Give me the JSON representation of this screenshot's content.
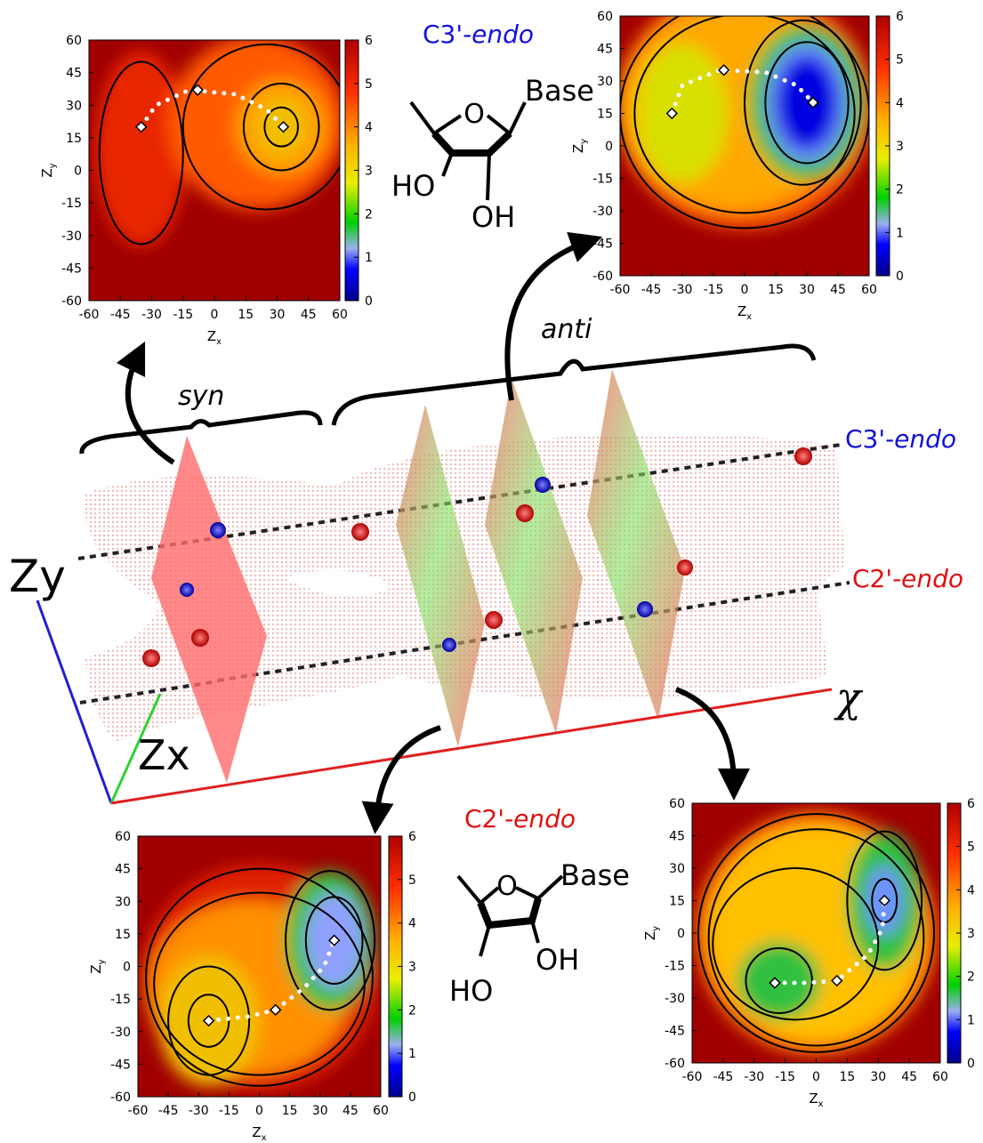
{
  "panels": [
    {
      "xlim": [
        -60,
        60
      ],
      "ylim": [
        -60,
        60
      ],
      "clim": [
        0,
        6
      ],
      "xticks": [
        -60,
        -45,
        -30,
        -15,
        0,
        15,
        30,
        45,
        60
      ],
      "yticks": [
        -60,
        -45,
        -30,
        -15,
        0,
        15,
        30,
        45,
        60
      ],
      "colorbar_ticks": [
        0,
        1,
        2,
        3,
        4,
        5,
        6
      ],
      "xlabel": "Z",
      "xlabel_sub": "x",
      "ylabel": "Z",
      "ylabel_sub": "y"
    },
    {
      "xlim": [
        -60,
        60
      ],
      "ylim": [
        -60,
        60
      ],
      "clim": [
        0,
        6
      ],
      "xticks": [
        -60,
        -45,
        -30,
        -15,
        0,
        15,
        30,
        45,
        60
      ],
      "yticks": [
        -60,
        -45,
        -30,
        -15,
        0,
        15,
        30,
        45,
        60
      ],
      "colorbar_ticks": [
        0,
        1,
        2,
        3,
        4,
        5,
        6
      ],
      "xlabel": "Z",
      "xlabel_sub": "x",
      "ylabel": "Z",
      "ylabel_sub": "y"
    },
    {
      "xlim": [
        -60,
        60
      ],
      "ylim": [
        -60,
        60
      ],
      "clim": [
        0,
        6
      ],
      "xticks": [
        -60,
        -45,
        -30,
        -15,
        0,
        15,
        30,
        45,
        60
      ],
      "yticks": [
        -60,
        -45,
        -30,
        -15,
        0,
        15,
        30,
        45,
        60
      ],
      "colorbar_ticks": [
        0,
        1,
        2,
        3,
        4,
        5,
        6
      ],
      "xlabel": "Z",
      "xlabel_sub": "x",
      "ylabel": "Z",
      "ylabel_sub": "y"
    },
    {
      "xlim": [
        -60,
        60
      ],
      "ylim": [
        -60,
        60
      ],
      "clim": [
        0,
        6
      ],
      "xticks": [
        -60,
        -45,
        -30,
        -15,
        0,
        15,
        30,
        45,
        60
      ],
      "yticks": [
        -60,
        -45,
        -30,
        -15,
        0,
        15,
        30,
        45,
        60
      ],
      "colorbar_ticks": [
        0,
        1,
        2,
        3,
        4,
        5,
        6
      ],
      "xlabel": "Z",
      "xlabel_sub": "x",
      "ylabel": "Z",
      "ylabel_sub": "y"
    }
  ],
  "sugars": [
    {
      "name": "C3'-",
      "name_italic": "endo",
      "base": "Base",
      "ring_o": "O",
      "ho": "HO",
      "oh": "OH"
    },
    {
      "name": "C2'-",
      "name_italic": "endo",
      "base": "Base",
      "ring_o": "O",
      "ho": "HO",
      "oh": "OH"
    }
  ],
  "labels": {
    "syn": "syn",
    "anti": "anti",
    "c3_name": "C3'-",
    "c3_italic": "endo",
    "c2_name": "C2'-",
    "c2_italic": "endo",
    "zy": "Zy",
    "zx": "Zx",
    "chi": "χ"
  }
}
